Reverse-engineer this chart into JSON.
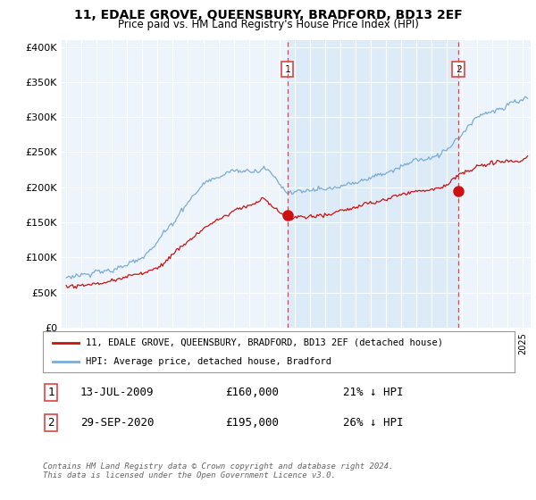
{
  "title": "11, EDALE GROVE, QUEENSBURY, BRADFORD, BD13 2EF",
  "subtitle": "Price paid vs. HM Land Registry's House Price Index (HPI)",
  "ylabel_ticks": [
    "£0",
    "£50K",
    "£100K",
    "£150K",
    "£200K",
    "£250K",
    "£300K",
    "£350K",
    "£400K"
  ],
  "ytick_values": [
    0,
    50000,
    100000,
    150000,
    200000,
    250000,
    300000,
    350000,
    400000
  ],
  "ylim": [
    0,
    410000
  ],
  "xlim_start": 1994.7,
  "xlim_end": 2025.5,
  "hpi_color": "#7aacd6",
  "hpi_fill_color": "#daeaf7",
  "price_color": "#cc1111",
  "vline_color": "#dd4444",
  "marker1_date": 2009.53,
  "marker1_price": 160000,
  "marker1_label": "1",
  "marker2_date": 2020.75,
  "marker2_price": 195000,
  "marker2_label": "2",
  "legend_line1": "11, EDALE GROVE, QUEENSBURY, BRADFORD, BD13 2EF (detached house)",
  "legend_line2": "HPI: Average price, detached house, Bradford",
  "table_row1": [
    "1",
    "13-JUL-2009",
    "£160,000",
    "21% ↓ HPI"
  ],
  "table_row2": [
    "2",
    "29-SEP-2020",
    "£195,000",
    "26% ↓ HPI"
  ],
  "footnote": "Contains HM Land Registry data © Crown copyright and database right 2024.\nThis data is licensed under the Open Government Licence v3.0.",
  "plot_bg_color": "#eef4fb"
}
